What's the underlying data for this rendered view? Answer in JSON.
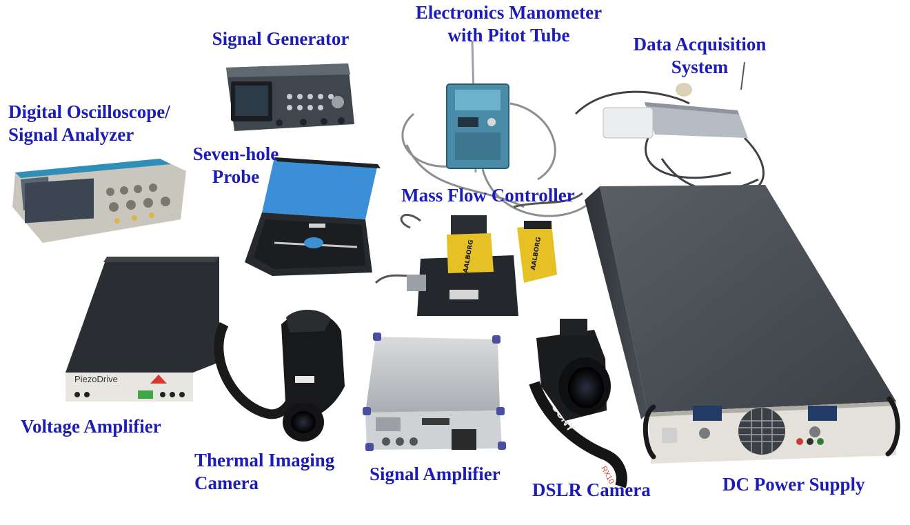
{
  "figure": {
    "labels": {
      "signal_generator": [
        "Signal Generator"
      ],
      "manometer": [
        "Electronics Manometer",
        "with Pitot Tube"
      ],
      "daq": [
        "Data Acquisition",
        "System"
      ],
      "oscilloscope": [
        "Digital Oscilloscope/",
        "Signal Analyzer"
      ],
      "seven_hole": [
        "Seven-hole",
        "Probe"
      ],
      "mass_flow": [
        "Mass Flow Controller"
      ],
      "voltage_amp": [
        "Voltage Amplifier"
      ],
      "thermal_cam": [
        "Thermal Imaging",
        "Camera"
      ],
      "signal_amp": [
        "Signal Amplifier"
      ],
      "dslr": [
        "DSLR Camera"
      ],
      "dc_power": [
        "DC Power Supply"
      ]
    },
    "device_markings": {
      "piezo_brand": "PiezoDrive",
      "mfc_brand": "AALBORG",
      "camera_brand": "SONY",
      "camera_model": "RX10"
    },
    "colors": {
      "label": "#1c1cb8"
    }
  }
}
